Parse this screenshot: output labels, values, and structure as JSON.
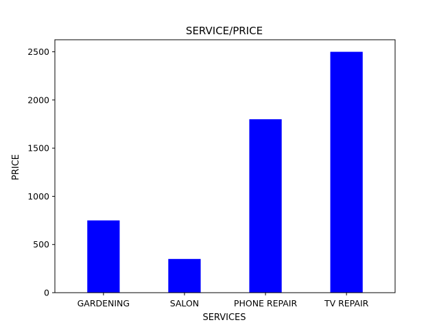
{
  "chart_data": {
    "type": "bar",
    "title": "SERVICE/PRICE",
    "xlabel": "SERVICES",
    "ylabel": "PRICE",
    "categories": [
      "GARDENING",
      "SALON",
      "PHONE REPAIR",
      "TV REPAIR"
    ],
    "values": [
      750,
      350,
      1800,
      2500
    ],
    "yticks": [
      0,
      500,
      1000,
      1500,
      2000,
      2500
    ],
    "ylim": [
      0,
      2625
    ],
    "grid": false,
    "legend": false,
    "bar_color": "#0000ff"
  }
}
